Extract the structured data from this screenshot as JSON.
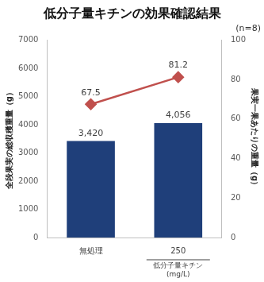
{
  "chart_data": {
    "type": "bar",
    "title": "低分子量キチンの効果確認結果",
    "subtitle": "(n=8)",
    "categories": [
      "無処理",
      "250"
    ],
    "annotations": [
      {
        "text": "低分子量キチン\n(mg/L)",
        "x": "250"
      }
    ],
    "y_label": "全段果実の総収穫重量（g）",
    "y2_label": "果実一果あたりの重量（g）",
    "series": [
      {
        "type": "bar",
        "color": "#1f3f7a",
        "values": [
          3420,
          4056
        ],
        "value_labels": [
          "3,420",
          "4,056"
        ]
      },
      {
        "type": "line",
        "axis": "y2",
        "color": "#c0504d",
        "marker": "diamond",
        "values": [
          67.5,
          81.2
        ]
      }
    ],
    "ylim": [
      0,
      7000
    ],
    "yticks": [
      0,
      1000,
      2000,
      3000,
      4000,
      5000,
      6000,
      7000
    ],
    "y2lim": [
      0,
      100
    ],
    "y2ticks": [
      0,
      20,
      40,
      60,
      80,
      100
    ],
    "grid": false,
    "data_labels": true
  }
}
